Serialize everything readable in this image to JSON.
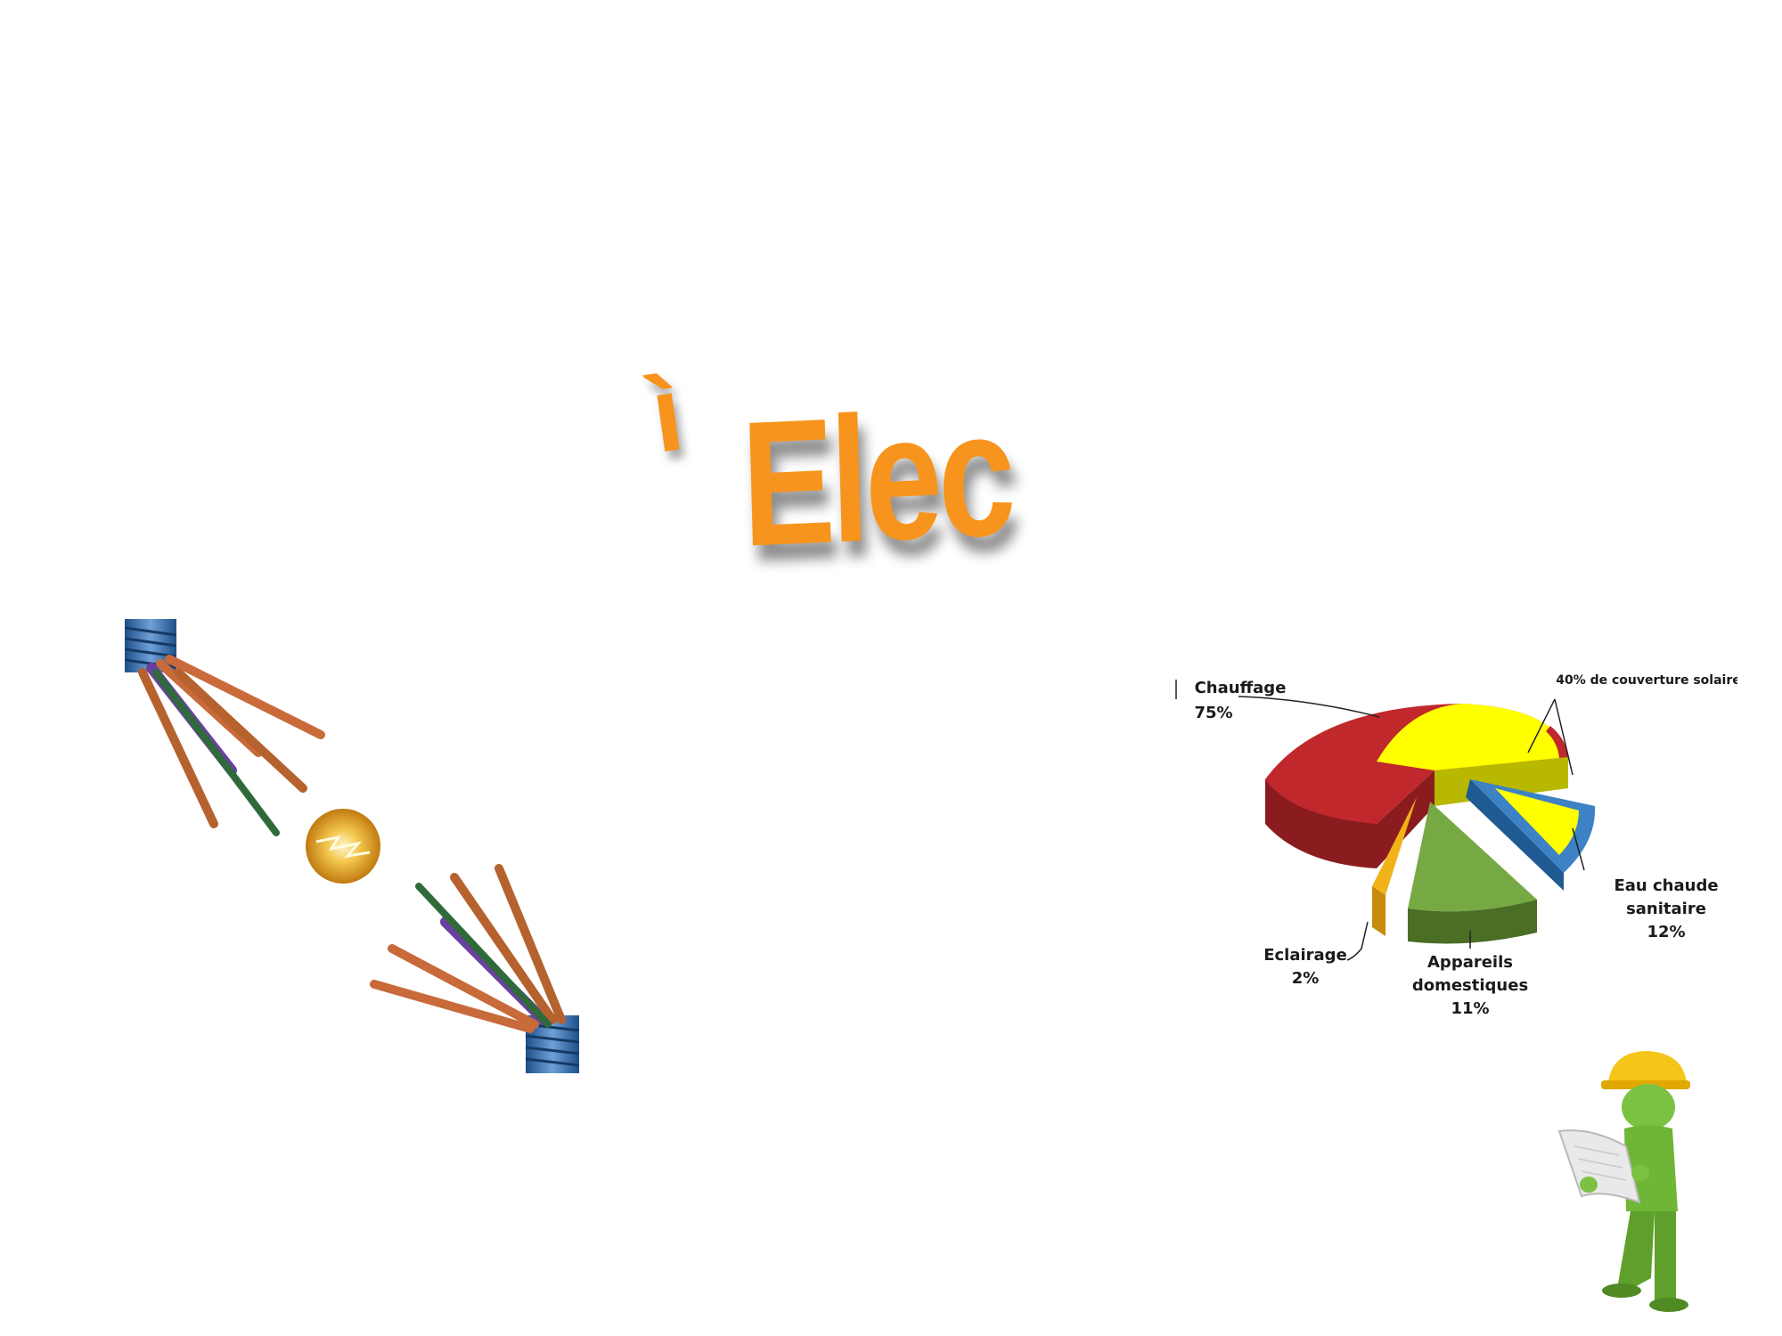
{
  "logo": {
    "accent": "ì",
    "text": "Elec",
    "color": "#f7941d"
  },
  "chart_data": {
    "type": "pie",
    "title": "",
    "slices": [
      {
        "label": "Chauffage",
        "value": 75,
        "value_label": "75%",
        "color": "#c0282c"
      },
      {
        "label": "Eau chaude sanitaire",
        "label_lines": [
          "Eau chaude",
          "sanitaire"
        ],
        "value": 12,
        "value_label": "12%",
        "color": "#3c82c4"
      },
      {
        "label": "Appareils domestiques",
        "label_lines": [
          "Appareils",
          "domestiques"
        ],
        "value": 11,
        "value_label": "11%",
        "color": "#76a844"
      },
      {
        "label": "Eclairage",
        "value": 2,
        "value_label": "2%",
        "color": "#f2b21a"
      }
    ],
    "annotations": [
      {
        "text": "40% de couverture solaire",
        "color": "#ffff00"
      }
    ]
  },
  "icons": {
    "cables": "electric-cables-spark-icon",
    "worker": "worker-with-hardhat-and-plan-icon"
  }
}
